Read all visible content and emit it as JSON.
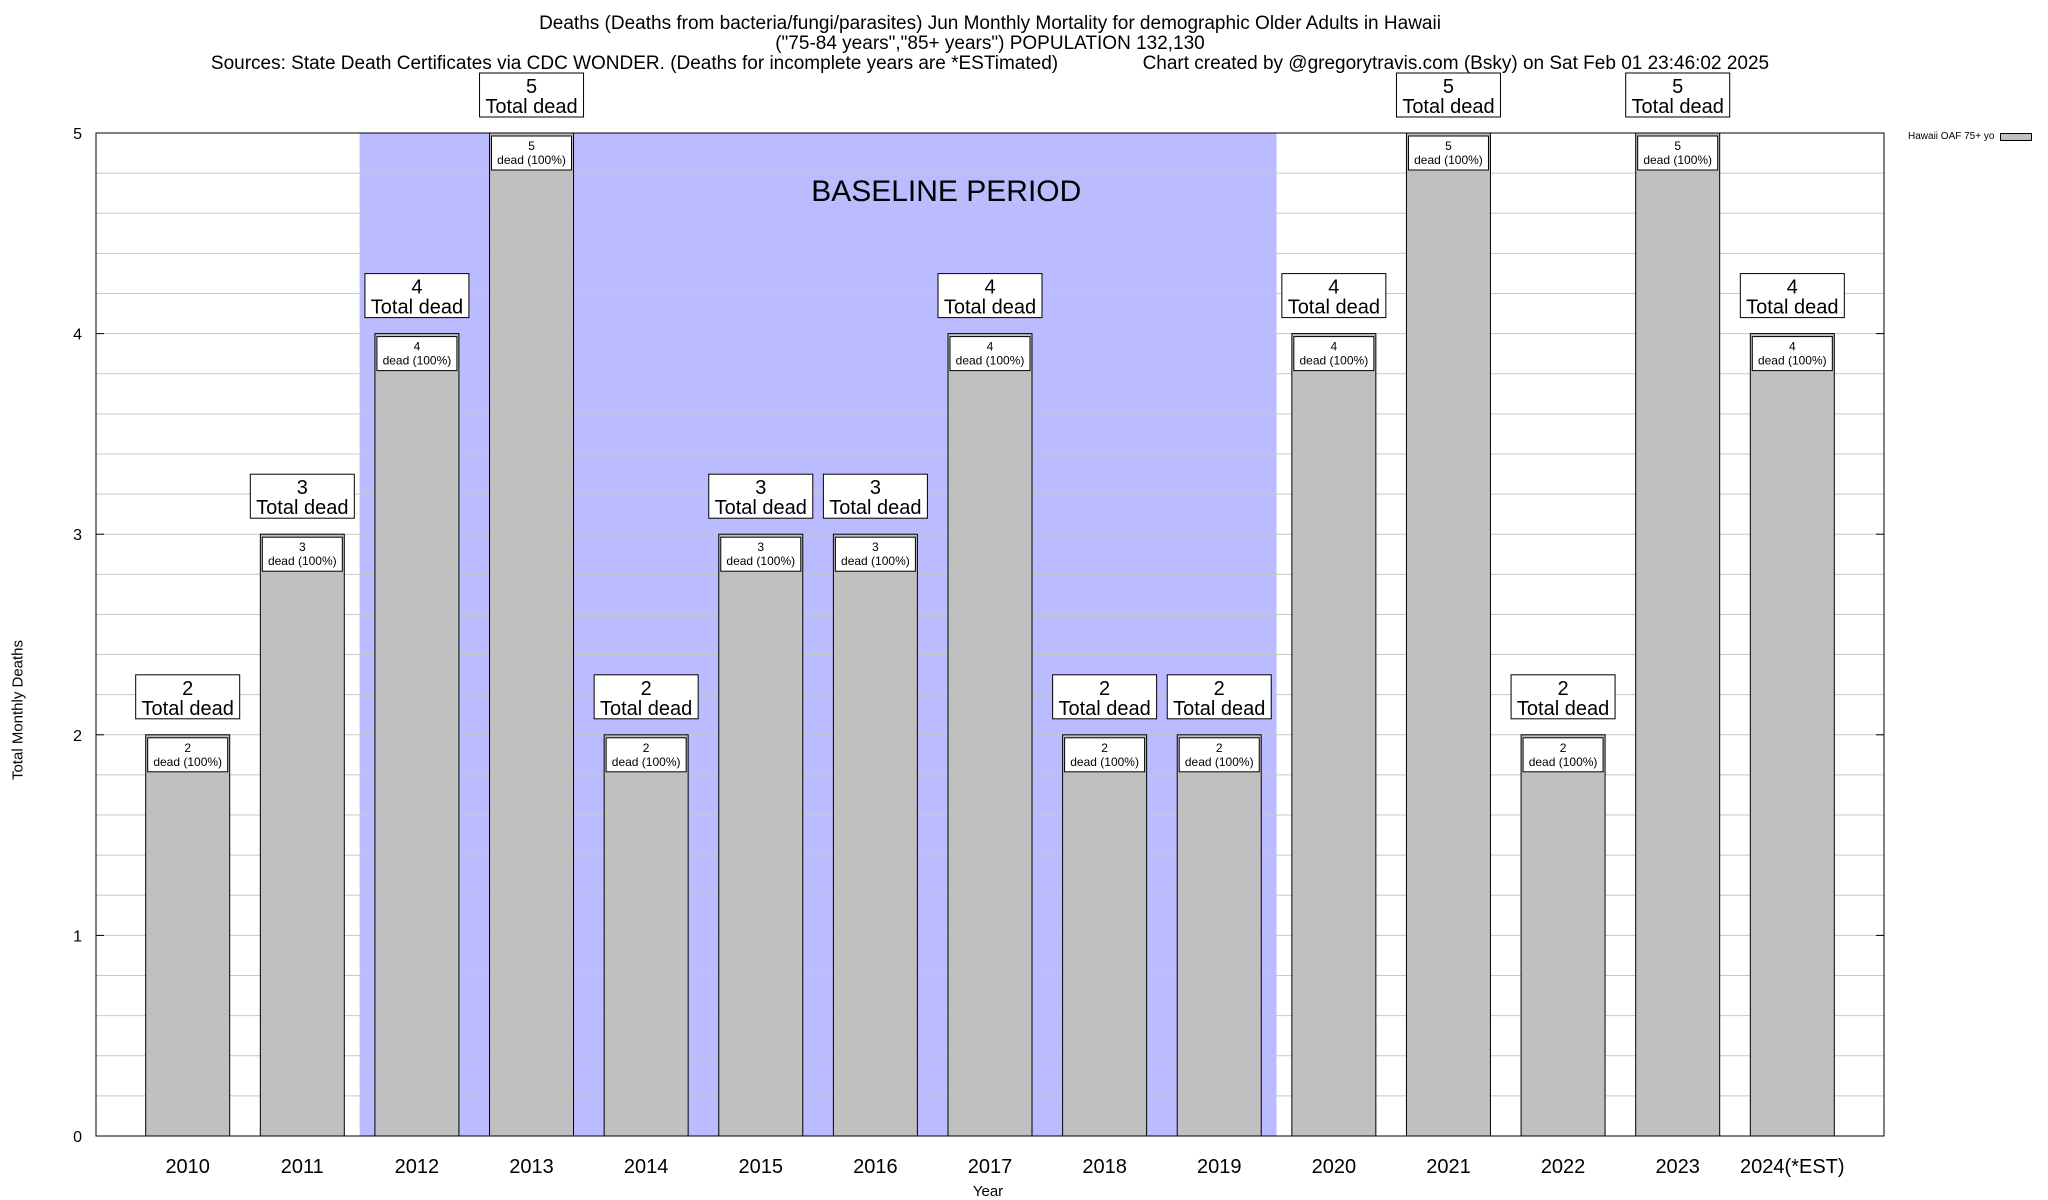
{
  "chart_data": {
    "type": "bar",
    "title": "Deaths (Deaths from bacteria/fungi/parasites) Jun Monthly Mortality for demographic Older Adults in Hawaii",
    "subtitle": "(\"75-84 years\",\"85+ years\") POPULATION 132,130",
    "source_note": "Sources: State Death Certificates via CDC WONDER. (Deaths for incomplete years are *ESTimated)",
    "credit": "Chart created by @gregorytravis.com (Bsky) on Sat Feb 01 23:46:02 2025",
    "xlabel": "Year",
    "ylabel": "Total Monthly Deaths",
    "ylim": [
      0,
      5
    ],
    "yticks": [
      0,
      1,
      2,
      3,
      4,
      5
    ],
    "grid": true,
    "legend_position": "top-right",
    "categories": [
      "2010",
      "2011",
      "2012",
      "2013",
      "2014",
      "2015",
      "2016",
      "2017",
      "2018",
      "2019",
      "2020",
      "2021",
      "2022",
      "2023",
      "2024(*EST)"
    ],
    "series": [
      {
        "name": "Hawaii OAF 75+ yo",
        "values": [
          2,
          3,
          4,
          5,
          2,
          3,
          3,
          4,
          2,
          2,
          4,
          5,
          2,
          5,
          4
        ],
        "color": "#c0c0c0"
      }
    ],
    "top_label_suffix": "Total dead",
    "inner_label_suffix": "dead (100%)",
    "baseline_period": {
      "label": "BASELINE PERIOD",
      "start": "2012",
      "end": "2019",
      "color": "#bbbbff"
    }
  }
}
